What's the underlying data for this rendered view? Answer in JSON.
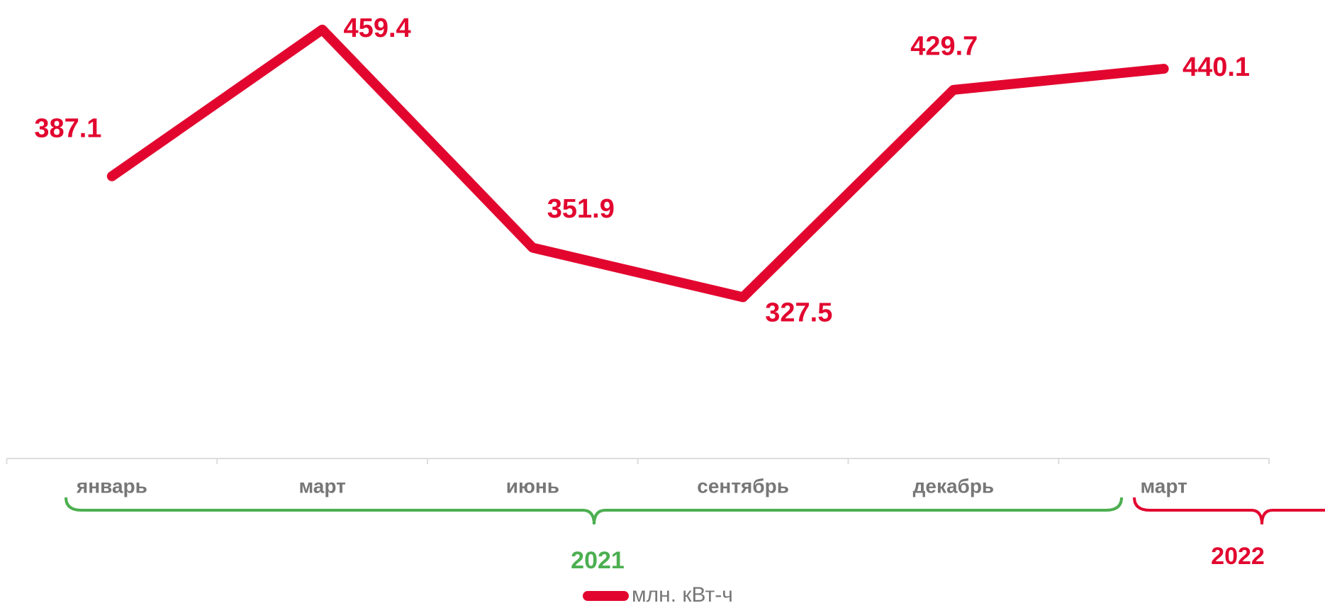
{
  "chart_data": {
    "type": "line",
    "categories": [
      "январь",
      "март",
      "июнь",
      "сентябрь",
      "декабрь",
      "март"
    ],
    "series": [
      {
        "name": "млн. кВт-ч",
        "color": "#e2062f",
        "values": [
          387.1,
          459.4,
          351.9,
          327.5,
          429.7,
          440.1
        ]
      }
    ],
    "ylim": [
      248,
      474
    ],
    "annotations": [
      {
        "text": "2021",
        "color": "#4caf50"
      },
      {
        "text": "2022",
        "color": "#e2062f"
      }
    ]
  }
}
